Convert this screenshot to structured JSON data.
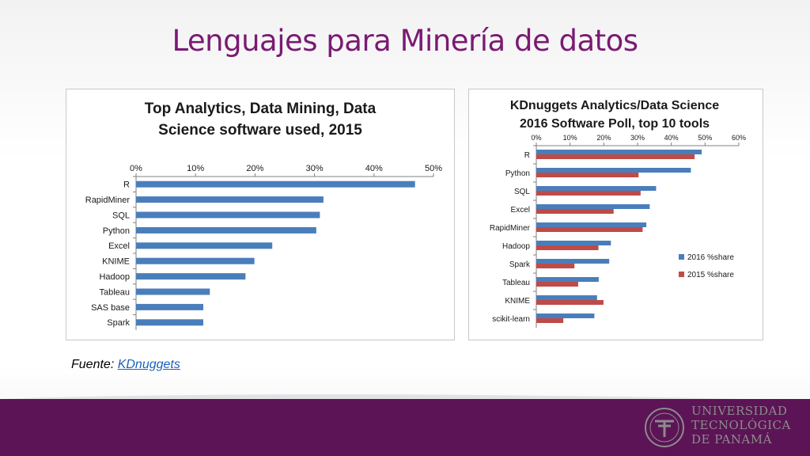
{
  "slide": {
    "title": "Lenguajes para Minería de datos",
    "source_prefix": "Fuente: ",
    "source_link": "KDnuggets"
  },
  "logo": {
    "name": "Universidad Tecnológica de Panamá",
    "lines": [
      "UNIVERSIDAD",
      "TECNOLÓGICA",
      "DE PANAMÁ"
    ]
  },
  "colors": {
    "title": "#7a1a73",
    "footer": "#5c1456",
    "bar_blue": "#4a7ebb",
    "bar_red": "#be4b48"
  },
  "chart_data": [
    {
      "type": "bar",
      "orientation": "horizontal",
      "title": "Top Analytics, Data Mining, Data\nScience software used, 2015",
      "title_lines": [
        "Top Analytics, Data Mining, Data",
        "Science software used, 2015"
      ],
      "categories": [
        "R",
        "RapidMiner",
        "SQL",
        "Python",
        "Excel",
        "KNIME",
        "Hadoop",
        "Tableau",
        "SAS base",
        "Spark"
      ],
      "values": [
        46.9,
        31.5,
        30.9,
        30.3,
        22.9,
        19.9,
        18.4,
        12.4,
        11.3,
        11.3
      ],
      "xlim": [
        0,
        50
      ],
      "xticks": [
        "0%",
        "10%",
        "20%",
        "30%",
        "40%",
        "50%"
      ],
      "axis_position": "top",
      "grid": false,
      "legend": "none"
    },
    {
      "type": "bar",
      "orientation": "horizontal",
      "title": "KDnuggets Analytics/Data Science\n2016 Software Poll, top 10 tools",
      "title_lines": [
        "KDnuggets Analytics/Data Science",
        "2016 Software Poll, top 10 tools"
      ],
      "categories": [
        "R",
        "Python",
        "SQL",
        "Excel",
        "RapidMiner",
        "Hadoop",
        "Spark",
        "Tableau",
        "KNIME",
        "scikit-learn"
      ],
      "series": [
        {
          "name": "2016 %share",
          "values": [
            49,
            45.8,
            35.5,
            33.6,
            32.6,
            22.1,
            21.6,
            18.5,
            18.0,
            17.2
          ]
        },
        {
          "name": "2015 %share",
          "values": [
            46.9,
            30.3,
            30.9,
            22.9,
            31.5,
            18.4,
            11.3,
            12.4,
            19.9,
            8.0
          ]
        }
      ],
      "xlim": [
        0,
        60
      ],
      "xticks": [
        "0%",
        "10%",
        "20%",
        "30%",
        "40%",
        "50%",
        "60%"
      ],
      "axis_position": "top",
      "grid": false,
      "legend": "right"
    }
  ]
}
